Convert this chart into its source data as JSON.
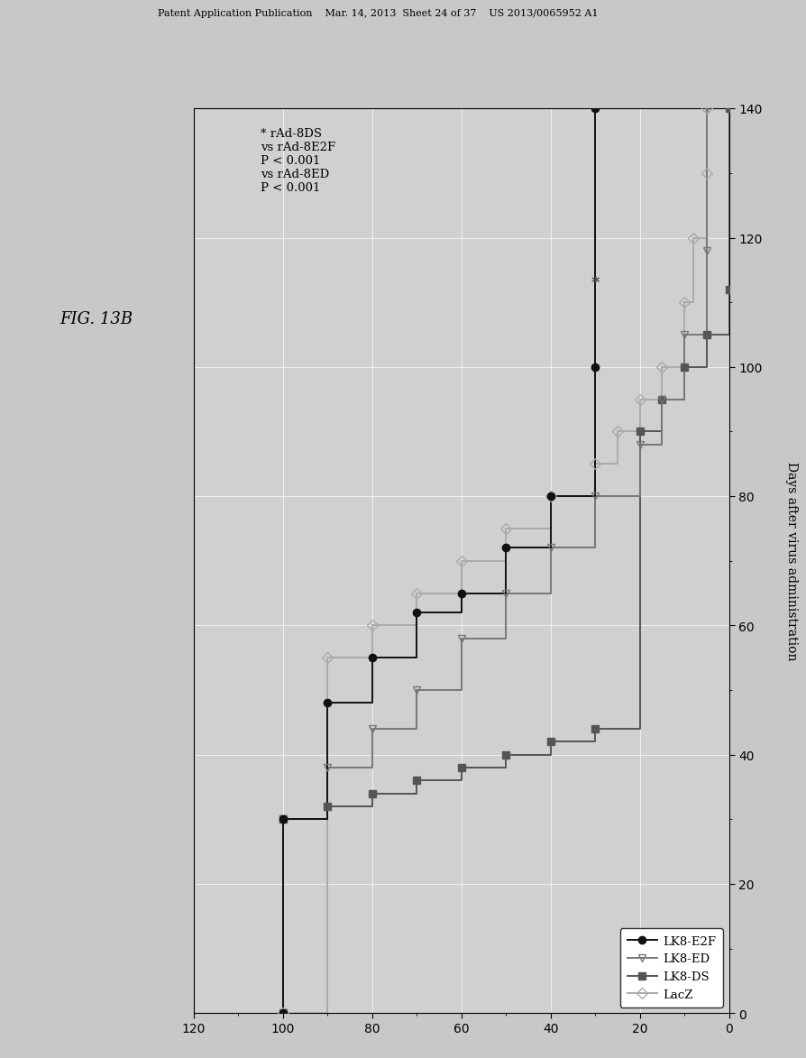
{
  "header": "Patent Application Publication    Mar. 14, 2013  Sheet 24 of 37    US 2013/0065952 A1",
  "fig_label": "FIG. 13B",
  "annotation_lines": [
    "* rAd-8DS",
    "vs rAd-8E2F",
    "P < 0.001",
    "vs rAd-8ED",
    "P < 0.001"
  ],
  "ylabel": "Days after virus administration",
  "yticks": [
    0,
    20,
    40,
    60,
    80,
    100,
    120,
    140
  ],
  "xticks": [
    0,
    20,
    40,
    60,
    80,
    100,
    120
  ],
  "xlim": [
    120,
    0
  ],
  "ylim": [
    0,
    140
  ],
  "bg_color": "#c8c8c8",
  "plot_bg": "#d4d4d4",
  "border_bg": "#e0e0e0",
  "km_e2f": {
    "label": "LK8-E2F",
    "color": "#111111",
    "marker": "o",
    "mfc": "#111111",
    "days": [
      0,
      30,
      48,
      55,
      62,
      65,
      72,
      80,
      100,
      140
    ],
    "surv": [
      100,
      100,
      90,
      80,
      70,
      60,
      50,
      40,
      30,
      30
    ]
  },
  "km_ed": {
    "label": "LK8-ED",
    "color": "#777777",
    "marker": "v",
    "mfc": "none",
    "days": [
      0,
      30,
      38,
      44,
      50,
      58,
      65,
      72,
      80,
      88,
      95,
      105,
      118,
      140
    ],
    "surv": [
      100,
      100,
      90,
      80,
      70,
      60,
      50,
      40,
      30,
      20,
      15,
      10,
      5,
      5
    ]
  },
  "km_ds": {
    "label": "LK8-DS",
    "color": "#555555",
    "marker": "s",
    "mfc": "#555555",
    "days": [
      0,
      30,
      32,
      34,
      36,
      38,
      40,
      42,
      44,
      90,
      95,
      100,
      105,
      112,
      140
    ],
    "surv": [
      100,
      100,
      90,
      80,
      70,
      60,
      50,
      40,
      30,
      20,
      15,
      10,
      5,
      0,
      0
    ]
  },
  "km_lacz": {
    "label": "LacZ",
    "color": "#aaaaaa",
    "marker": "D",
    "mfc": "none",
    "days": [
      0,
      0,
      55,
      60,
      65,
      70,
      75,
      80,
      85,
      90,
      95,
      100,
      110,
      120,
      130,
      140
    ],
    "surv": [
      100,
      100,
      90,
      80,
      70,
      60,
      50,
      40,
      30,
      25,
      20,
      15,
      10,
      8,
      5,
      5
    ]
  },
  "legend_items": [
    {
      "label": "LK8-E2F",
      "color": "#111111",
      "marker": "o",
      "mfc": "#111111"
    },
    {
      "label": "LK8-ED",
      "color": "#777777",
      "marker": "v",
      "mfc": "none"
    },
    {
      "label": "LK8-DS",
      "color": "#555555",
      "marker": "s",
      "mfc": "#555555"
    },
    {
      "label": "LacZ",
      "color": "#aaaaaa",
      "marker": "D",
      "mfc": "none"
    }
  ]
}
